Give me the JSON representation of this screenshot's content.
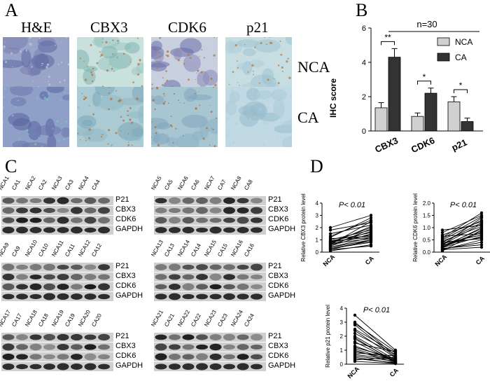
{
  "panel_letters": {
    "A": "A",
    "B": "B",
    "C": "C",
    "D": "D"
  },
  "ihc": {
    "stains": [
      "H&E",
      "CBX3",
      "CDK6",
      "p21"
    ],
    "rows": [
      "NCA",
      "CA"
    ]
  },
  "chart_b": {
    "type": "bar",
    "title": "n=30",
    "ylabel": "IHC score",
    "ylim": [
      0,
      6
    ],
    "yticks": [
      "0",
      "2",
      "4",
      "6"
    ],
    "categories": [
      "CBX3",
      "CDK6",
      "p21"
    ],
    "series": [
      {
        "name": "NCA",
        "color": "#d0d0d0",
        "values": [
          1.35,
          0.85,
          1.7
        ],
        "err": [
          0.3,
          0.2,
          0.3
        ]
      },
      {
        "name": "CA",
        "color": "#333333",
        "values": [
          4.3,
          2.2,
          0.55
        ],
        "err": [
          0.5,
          0.3,
          0.2
        ]
      }
    ],
    "significance": [
      "**",
      "*",
      "*"
    ]
  },
  "blots": [
    {
      "lanes": [
        "NCA1",
        "CA1",
        "NCA2",
        "CA2",
        "NCA3",
        "CA3",
        "NCA4",
        "CA4"
      ],
      "proteins": [
        "P21",
        "CBX3",
        "CDK6",
        "GAPDH"
      ]
    },
    {
      "lanes": [
        "NCA5",
        "CA5",
        "NCA6",
        "CA6",
        "NCA7",
        "CA7",
        "NCA8",
        "CA8"
      ],
      "proteins": [
        "P21",
        "CBX3",
        "CDK6",
        "GAPDH"
      ]
    },
    {
      "lanes": [
        "NCA9",
        "CA9",
        "NCA10",
        "CA10",
        "NCA11",
        "CA11",
        "NCA12",
        "CA12"
      ],
      "proteins": [
        "P21",
        "CBX3",
        "CDK6",
        "GAPDH"
      ]
    },
    {
      "lanes": [
        "NCA13",
        "CA13",
        "NCA14",
        "CA14",
        "NCA15",
        "CA15",
        "NCA16",
        "CA16"
      ],
      "proteins": [
        "P21",
        "CBX3",
        "CDK6",
        "GAPDH"
      ]
    },
    {
      "lanes": [
        "NCA17",
        "CA17",
        "NCA18",
        "CA18",
        "NCA19",
        "CA19",
        "NCA20",
        "CA20"
      ],
      "proteins": [
        "P21",
        "CBX3",
        "CDK6",
        "GAPDH"
      ]
    },
    {
      "lanes": [
        "NCA21",
        "CA21",
        "NCA22",
        "CA22",
        "NCA23",
        "CA23",
        "NCA24",
        "CA24"
      ],
      "proteins": [
        "P21",
        "CBX3",
        "CDK6",
        "GAPDH"
      ]
    }
  ],
  "chart_data": [
    {
      "type": "bar",
      "title": "n=30",
      "ylabel": "IHC score",
      "ylim": [
        0,
        6
      ],
      "categories": [
        "CBX3",
        "CDK6",
        "p21"
      ],
      "series": [
        {
          "name": "NCA",
          "values": [
            1.35,
            0.85,
            1.7
          ]
        },
        {
          "name": "CA",
          "values": [
            4.3,
            2.2,
            0.55
          ]
        }
      ]
    },
    {
      "type": "line",
      "ylabel": "Relative CBX3 protein level",
      "annotation": "P< 0.01",
      "ylim": [
        0,
        4
      ],
      "yticks": [
        "0",
        "1",
        "2",
        "3",
        "4"
      ],
      "x": [
        "NCA",
        "CA"
      ],
      "pairs": [
        [
          0.2,
          1.0
        ],
        [
          0.5,
          1.5
        ],
        [
          0.8,
          2.0
        ],
        [
          1.0,
          1.8
        ],
        [
          0.3,
          0.9
        ],
        [
          0.6,
          2.5
        ],
        [
          1.2,
          2.8
        ],
        [
          0.4,
          1.2
        ],
        [
          0.9,
          1.6
        ],
        [
          0.7,
          1.1
        ],
        [
          0.1,
          0.6
        ],
        [
          1.5,
          2.2
        ],
        [
          0.5,
          1.9
        ],
        [
          0.3,
          0.8
        ],
        [
          1.1,
          1.3
        ],
        [
          0.6,
          1.7
        ],
        [
          2.0,
          3.0
        ],
        [
          0.8,
          1.4
        ],
        [
          0.2,
          0.5
        ],
        [
          1.3,
          2.6
        ],
        [
          0.4,
          1.0
        ],
        [
          0.7,
          2.1
        ],
        [
          0.9,
          1.2
        ],
        [
          1.8,
          2.4
        ]
      ]
    },
    {
      "type": "line",
      "ylabel": "Relative CDK6 protein level",
      "annotation": "P< 0.01",
      "ylim": [
        0,
        2
      ],
      "yticks": [
        "0.0",
        "0.5",
        "1.0",
        "1.5",
        "2.0"
      ],
      "x": [
        "NCA",
        "CA"
      ],
      "pairs": [
        [
          0.1,
          0.5
        ],
        [
          0.2,
          1.0
        ],
        [
          0.3,
          1.4
        ],
        [
          0.05,
          0.9
        ],
        [
          0.4,
          1.2
        ],
        [
          0.15,
          0.3
        ],
        [
          0.6,
          1.6
        ],
        [
          0.2,
          0.8
        ],
        [
          0.9,
          1.1
        ],
        [
          0.3,
          0.6
        ],
        [
          0.1,
          0.2
        ],
        [
          0.5,
          1.3
        ],
        [
          0.25,
          0.95
        ],
        [
          0.8,
          1.5
        ],
        [
          0.35,
          0.7
        ],
        [
          0.45,
          1.05
        ],
        [
          0.12,
          0.4
        ],
        [
          0.7,
          1.25
        ],
        [
          0.22,
          0.85
        ],
        [
          0.55,
          1.45
        ],
        [
          0.18,
          0.65
        ],
        [
          0.3,
          1.15
        ],
        [
          0.65,
          0.75
        ],
        [
          0.4,
          0.55
        ]
      ]
    },
    {
      "type": "line",
      "ylabel": "Relative p21 protein level",
      "annotation": "P< 0.01",
      "ylim": [
        0,
        4
      ],
      "yticks": [
        "0",
        "1",
        "2",
        "3",
        "4"
      ],
      "x": [
        "NCA",
        "CA"
      ],
      "pairs": [
        [
          3.5,
          1.0
        ],
        [
          2.8,
          0.5
        ],
        [
          2.5,
          0.8
        ],
        [
          2.0,
          0.3
        ],
        [
          1.8,
          0.2
        ],
        [
          1.5,
          0.9
        ],
        [
          1.2,
          0.4
        ],
        [
          1.0,
          0.1
        ],
        [
          0.8,
          0.6
        ],
        [
          0.6,
          0.2
        ],
        [
          0.5,
          0.05
        ],
        [
          2.2,
          0.7
        ],
        [
          3.0,
          0.6
        ],
        [
          1.6,
          0.15
        ],
        [
          0.9,
          0.35
        ],
        [
          0.4,
          0.1
        ],
        [
          0.2,
          0.05
        ],
        [
          2.4,
          0.45
        ],
        [
          1.3,
          0.25
        ],
        [
          0.7,
          0.3
        ],
        [
          0.3,
          0.5
        ],
        [
          2.9,
          0.9
        ],
        [
          1.9,
          0.1
        ],
        [
          1.1,
          0.2
        ]
      ]
    }
  ]
}
